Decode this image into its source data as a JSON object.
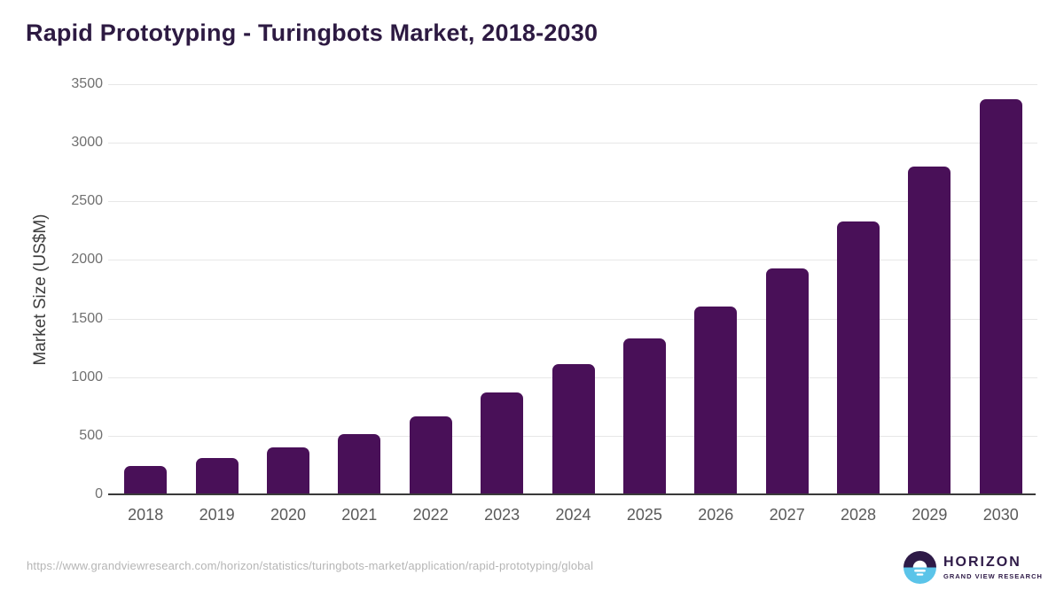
{
  "header": {
    "title": "Rapid Prototyping - Turingbots Market, 2018-2030"
  },
  "chart_data": {
    "type": "bar",
    "title": "Rapid Prototyping - Turingbots Market, 2018-2030",
    "categories": [
      "2018",
      "2019",
      "2020",
      "2021",
      "2022",
      "2023",
      "2024",
      "2025",
      "2026",
      "2027",
      "2028",
      "2029",
      "2030"
    ],
    "values": [
      240,
      310,
      400,
      512,
      667,
      870,
      1110,
      1330,
      1600,
      1930,
      2325,
      2795,
      3375
    ],
    "xlabel": "",
    "ylabel": "Market Size (US$M)",
    "ylim": [
      0,
      3500
    ],
    "ytick_interval": 500,
    "grid": true,
    "legend": false
  },
  "footer": {
    "source_url": "https://www.grandviewresearch.com/horizon/statistics/turingbots-market/application/rapid-prototyping/global",
    "logo": {
      "brand": "HORIZON",
      "tagline": "GRAND VIEW RESEARCH"
    }
  },
  "colors": {
    "title": "#2d1a42",
    "bar": "#491058",
    "axis_line": "#3a3a3a",
    "gridline": "#e7e7e7",
    "y_tick_label": "#707070",
    "x_tick_label": "#5a5a5a",
    "y_axis_title": "#3d3d3d",
    "source_url": "#b5b5b5",
    "logo_purple": "#2e1a47",
    "logo_blue": "#5bc4e9"
  }
}
